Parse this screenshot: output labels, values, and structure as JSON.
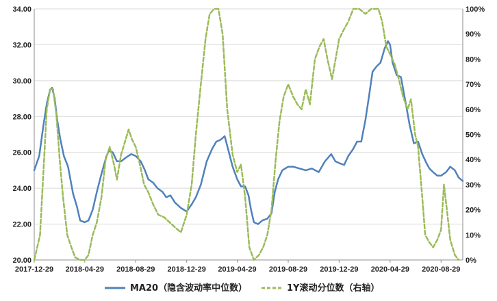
{
  "chart_data": {
    "type": "line",
    "title": "",
    "x_tick_labels": [
      "2017-12-29",
      "2018-04-29",
      "2018-08-29",
      "2018-12-29",
      "2019-04-29",
      "2019-08-29",
      "2019-12-29",
      "2020-04-29",
      "2020-08-29"
    ],
    "y_left": {
      "ticks": [
        "20.00",
        "22.00",
        "24.00",
        "26.00",
        "28.00",
        "30.00",
        "32.00",
        "34.00"
      ],
      "range": [
        20,
        34
      ]
    },
    "y_right": {
      "ticks": [
        "0%",
        "10%",
        "20%",
        "30%",
        "40%",
        "50%",
        "60%",
        "70%",
        "80%",
        "90%",
        "100%"
      ],
      "range": [
        0,
        100
      ],
      "unit": "%"
    },
    "grid": true,
    "legend_position": "bottom",
    "series": [
      {
        "name": "MA20（隐含波动率中位数）",
        "axis": "left",
        "style": "solid",
        "color": "#4f81bd",
        "points": [
          [
            "2017-12-29",
            25.0
          ],
          [
            "2018-01-10",
            25.8
          ],
          [
            "2018-01-20",
            27.5
          ],
          [
            "2018-01-28",
            28.7
          ],
          [
            "2018-02-05",
            29.5
          ],
          [
            "2018-02-10",
            29.6
          ],
          [
            "2018-02-16",
            29.0
          ],
          [
            "2018-02-22",
            27.8
          ],
          [
            "2018-03-01",
            26.8
          ],
          [
            "2018-03-10",
            25.8
          ],
          [
            "2018-03-20",
            25.2
          ],
          [
            "2018-04-01",
            23.7
          ],
          [
            "2018-04-10",
            23.0
          ],
          [
            "2018-04-18",
            22.2
          ],
          [
            "2018-04-29",
            22.1
          ],
          [
            "2018-05-08",
            22.2
          ],
          [
            "2018-05-18",
            22.8
          ],
          [
            "2018-05-28",
            23.8
          ],
          [
            "2018-06-08",
            24.8
          ],
          [
            "2018-06-20",
            25.8
          ],
          [
            "2018-06-26",
            26.1
          ],
          [
            "2018-07-05",
            26.0
          ],
          [
            "2018-07-15",
            25.5
          ],
          [
            "2018-07-25",
            25.5
          ],
          [
            "2018-08-05",
            25.7
          ],
          [
            "2018-08-18",
            25.9
          ],
          [
            "2018-08-29",
            25.8
          ],
          [
            "2018-09-10",
            25.5
          ],
          [
            "2018-09-20",
            25.0
          ],
          [
            "2018-09-28",
            24.5
          ],
          [
            "2018-10-10",
            24.3
          ],
          [
            "2018-10-20",
            24.0
          ],
          [
            "2018-11-01",
            23.8
          ],
          [
            "2018-11-10",
            23.5
          ],
          [
            "2018-11-20",
            23.6
          ],
          [
            "2018-12-01",
            23.2
          ],
          [
            "2018-12-15",
            22.9
          ],
          [
            "2018-12-29",
            22.7
          ],
          [
            "2019-01-10",
            23.1
          ],
          [
            "2019-01-20",
            23.5
          ],
          [
            "2019-02-01",
            24.2
          ],
          [
            "2019-02-15",
            25.5
          ],
          [
            "2019-02-28",
            26.2
          ],
          [
            "2019-03-10",
            26.6
          ],
          [
            "2019-03-20",
            26.7
          ],
          [
            "2019-03-30",
            26.9
          ],
          [
            "2019-04-08",
            26.1
          ],
          [
            "2019-04-18",
            25.2
          ],
          [
            "2019-04-29",
            24.5
          ],
          [
            "2019-05-08",
            24.1
          ],
          [
            "2019-05-18",
            24.1
          ],
          [
            "2019-05-26",
            23.6
          ],
          [
            "2019-06-01",
            22.8
          ],
          [
            "2019-06-08",
            22.1
          ],
          [
            "2019-06-18",
            22.0
          ],
          [
            "2019-06-28",
            22.2
          ],
          [
            "2019-07-10",
            22.3
          ],
          [
            "2019-07-20",
            22.6
          ],
          [
            "2019-07-28",
            23.8
          ],
          [
            "2019-08-05",
            24.5
          ],
          [
            "2019-08-15",
            25.0
          ],
          [
            "2019-08-29",
            25.2
          ],
          [
            "2019-09-10",
            25.2
          ],
          [
            "2019-09-25",
            25.1
          ],
          [
            "2019-10-10",
            25.0
          ],
          [
            "2019-10-25",
            25.1
          ],
          [
            "2019-11-10",
            24.9
          ],
          [
            "2019-11-25",
            25.5
          ],
          [
            "2019-12-10",
            25.9
          ],
          [
            "2019-12-20",
            25.5
          ],
          [
            "2019-12-29",
            25.4
          ],
          [
            "2020-01-10",
            25.3
          ],
          [
            "2020-01-20",
            25.8
          ],
          [
            "2020-02-01",
            26.2
          ],
          [
            "2020-02-10",
            26.6
          ],
          [
            "2020-02-20",
            26.6
          ],
          [
            "2020-03-01",
            27.8
          ],
          [
            "2020-03-10",
            29.2
          ],
          [
            "2020-03-18",
            30.5
          ],
          [
            "2020-03-28",
            30.8
          ],
          [
            "2020-04-06",
            31.0
          ],
          [
            "2020-04-16",
            31.8
          ],
          [
            "2020-04-24",
            32.2
          ],
          [
            "2020-04-29",
            32.0
          ],
          [
            "2020-05-05",
            31.0
          ],
          [
            "2020-05-15",
            30.3
          ],
          [
            "2020-05-25",
            30.2
          ],
          [
            "2020-06-05",
            28.8
          ],
          [
            "2020-06-15",
            27.5
          ],
          [
            "2020-06-25",
            26.5
          ],
          [
            "2020-07-05",
            26.6
          ],
          [
            "2020-07-15",
            25.9
          ],
          [
            "2020-07-25",
            25.4
          ],
          [
            "2020-08-01",
            25.1
          ],
          [
            "2020-08-10",
            24.9
          ],
          [
            "2020-08-20",
            24.7
          ],
          [
            "2020-08-29",
            24.7
          ],
          [
            "2020-09-10",
            24.9
          ],
          [
            "2020-09-20",
            25.2
          ],
          [
            "2020-10-01",
            25.0
          ],
          [
            "2020-10-10",
            24.6
          ],
          [
            "2020-10-20",
            24.4
          ]
        ]
      },
      {
        "name": "1Y滚动分位数（右轴）",
        "axis": "right",
        "style": "dashed",
        "color": "#9bbb59",
        "points": [
          [
            "2017-12-29",
            0
          ],
          [
            "2018-01-05",
            5
          ],
          [
            "2018-01-12",
            10
          ],
          [
            "2018-01-20",
            35
          ],
          [
            "2018-01-28",
            60
          ],
          [
            "2018-02-05",
            68
          ],
          [
            "2018-02-12",
            68
          ],
          [
            "2018-02-20",
            58
          ],
          [
            "2018-02-28",
            40
          ],
          [
            "2018-03-08",
            25
          ],
          [
            "2018-03-18",
            10
          ],
          [
            "2018-03-28",
            5
          ],
          [
            "2018-04-06",
            1
          ],
          [
            "2018-04-18",
            0
          ],
          [
            "2018-04-29",
            0
          ],
          [
            "2018-05-08",
            2
          ],
          [
            "2018-05-18",
            10
          ],
          [
            "2018-05-28",
            15
          ],
          [
            "2018-06-08",
            25
          ],
          [
            "2018-06-18",
            40
          ],
          [
            "2018-06-28",
            45
          ],
          [
            "2018-07-08",
            38
          ],
          [
            "2018-07-15",
            32
          ],
          [
            "2018-07-25",
            42
          ],
          [
            "2018-08-05",
            48
          ],
          [
            "2018-08-12",
            52
          ],
          [
            "2018-08-20",
            48
          ],
          [
            "2018-08-29",
            45
          ],
          [
            "2018-09-08",
            38
          ],
          [
            "2018-09-18",
            30
          ],
          [
            "2018-09-28",
            27
          ],
          [
            "2018-10-10",
            22
          ],
          [
            "2018-10-22",
            18
          ],
          [
            "2018-11-05",
            17
          ],
          [
            "2018-11-18",
            15
          ],
          [
            "2018-12-01",
            13
          ],
          [
            "2018-12-15",
            11
          ],
          [
            "2018-12-29",
            18
          ],
          [
            "2019-01-10",
            30
          ],
          [
            "2019-01-20",
            50
          ],
          [
            "2019-02-01",
            70
          ],
          [
            "2019-02-12",
            88
          ],
          [
            "2019-02-22",
            98
          ],
          [
            "2019-03-05",
            100
          ],
          [
            "2019-03-15",
            100
          ],
          [
            "2019-03-25",
            90
          ],
          [
            "2019-04-05",
            60
          ],
          [
            "2019-04-18",
            42
          ],
          [
            "2019-04-29",
            35
          ],
          [
            "2019-05-08",
            38
          ],
          [
            "2019-05-18",
            25
          ],
          [
            "2019-05-28",
            5
          ],
          [
            "2019-06-08",
            0
          ],
          [
            "2019-06-20",
            2
          ],
          [
            "2019-06-30",
            5
          ],
          [
            "2019-07-10",
            10
          ],
          [
            "2019-07-20",
            20
          ],
          [
            "2019-07-30",
            40
          ],
          [
            "2019-08-08",
            55
          ],
          [
            "2019-08-18",
            65
          ],
          [
            "2019-08-29",
            70
          ],
          [
            "2019-09-10",
            65
          ],
          [
            "2019-09-20",
            62
          ],
          [
            "2019-09-30",
            60
          ],
          [
            "2019-10-10",
            68
          ],
          [
            "2019-10-20",
            62
          ],
          [
            "2019-11-01",
            80
          ],
          [
            "2019-11-12",
            85
          ],
          [
            "2019-11-22",
            88
          ],
          [
            "2019-12-01",
            80
          ],
          [
            "2019-12-12",
            72
          ],
          [
            "2019-12-29",
            88
          ],
          [
            "2020-01-10",
            92
          ],
          [
            "2020-01-20",
            95
          ],
          [
            "2020-02-01",
            100
          ],
          [
            "2020-02-15",
            100
          ],
          [
            "2020-03-01",
            98
          ],
          [
            "2020-03-15",
            100
          ],
          [
            "2020-04-01",
            100
          ],
          [
            "2020-04-10",
            95
          ],
          [
            "2020-04-20",
            85
          ],
          [
            "2020-04-29",
            82
          ],
          [
            "2020-05-10",
            78
          ],
          [
            "2020-05-20",
            72
          ],
          [
            "2020-05-30",
            65
          ],
          [
            "2020-06-10",
            60
          ],
          [
            "2020-06-18",
            64
          ],
          [
            "2020-06-28",
            50
          ],
          [
            "2020-07-05",
            45
          ],
          [
            "2020-07-15",
            25
          ],
          [
            "2020-07-22",
            10
          ],
          [
            "2020-08-01",
            7
          ],
          [
            "2020-08-10",
            5
          ],
          [
            "2020-08-20",
            8
          ],
          [
            "2020-08-29",
            12
          ],
          [
            "2020-09-05",
            30
          ],
          [
            "2020-09-12",
            20
          ],
          [
            "2020-09-20",
            8
          ],
          [
            "2020-10-01",
            2
          ],
          [
            "2020-10-10",
            0
          ]
        ]
      }
    ]
  }
}
